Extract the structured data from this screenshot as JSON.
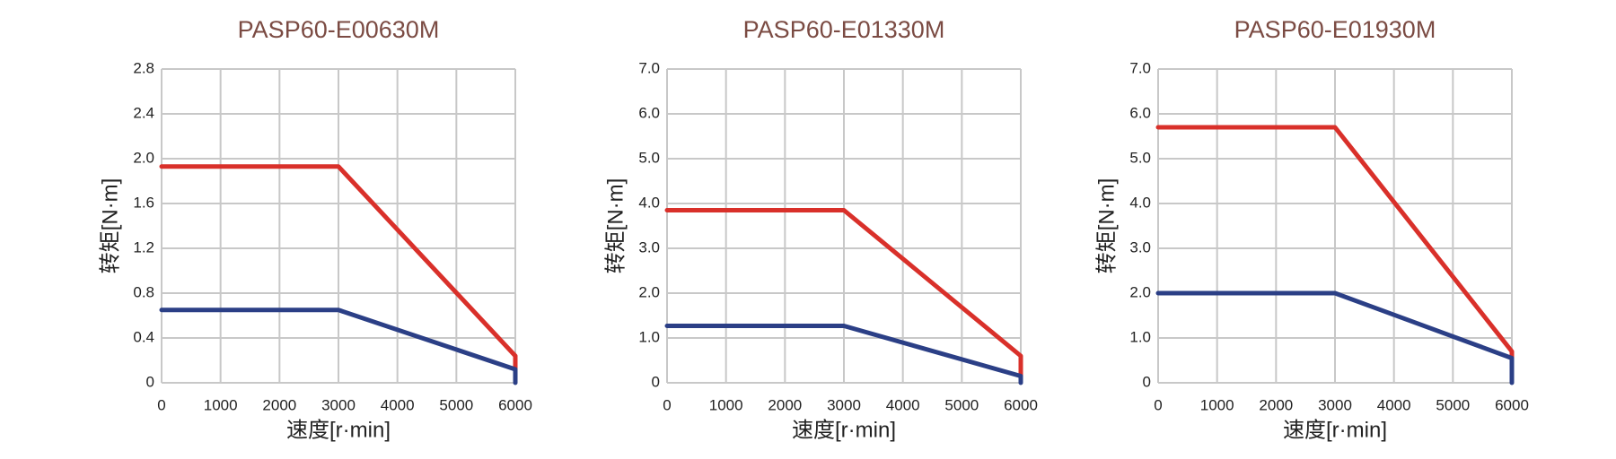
{
  "chart_data": [
    {
      "type": "line",
      "title": "PASP60-E00630M",
      "x_label": "速度[r·min]",
      "y_label": "转矩[N·m]",
      "xlim": [
        0,
        6000
      ],
      "xticks": [
        0,
        1000,
        2000,
        3000,
        4000,
        5000,
        6000
      ],
      "ylim": [
        0,
        2.8
      ],
      "yticks": [
        0,
        0.4,
        0.8,
        1.2,
        1.6,
        {
          "value": 2.0,
          "label": "2.0"
        },
        2.4,
        2.8
      ],
      "grid": true,
      "series": [
        {
          "color": "#d9302a",
          "x": [
            0,
            3000,
            6000,
            6000
          ],
          "values": [
            1.93,
            1.93,
            0.24,
            0.12
          ]
        },
        {
          "color": "#2b3f86",
          "x": [
            0,
            3000,
            6000,
            6000
          ],
          "values": [
            0.65,
            0.65,
            0.12,
            0
          ]
        }
      ]
    },
    {
      "type": "line",
      "title": "PASP60-E01330M",
      "x_label": "速度[r·min]",
      "y_label": "转矩[N·m]",
      "xlim": [
        0,
        6000
      ],
      "xticks": [
        0,
        1000,
        2000,
        3000,
        4000,
        5000,
        6000
      ],
      "ylim": [
        0,
        7
      ],
      "yticks": [
        0,
        {
          "value": 1,
          "label": "1.0"
        },
        {
          "value": 2,
          "label": "2.0"
        },
        {
          "value": 3,
          "label": "3.0"
        },
        {
          "value": 4,
          "label": "4.0"
        },
        {
          "value": 5,
          "label": "5.0"
        },
        {
          "value": 6,
          "label": "6.0"
        },
        {
          "value": 7,
          "label": "7.0"
        }
      ],
      "grid": true,
      "series": [
        {
          "color": "#d9302a",
          "x": [
            0,
            3000,
            6000,
            6000
          ],
          "values": [
            3.85,
            3.85,
            0.6,
            0.15
          ]
        },
        {
          "color": "#2b3f86",
          "x": [
            0,
            3000,
            6000,
            6000
          ],
          "values": [
            1.27,
            1.27,
            0.15,
            0
          ]
        }
      ]
    },
    {
      "type": "line",
      "title": "PASP60-E01930M",
      "x_label": "速度[r·min]",
      "y_label": "转矩[N·m]",
      "xlim": [
        0,
        6000
      ],
      "xticks": [
        0,
        1000,
        2000,
        3000,
        4000,
        5000,
        6000
      ],
      "ylim": [
        0,
        7
      ],
      "yticks": [
        0,
        {
          "value": 1,
          "label": "1.0"
        },
        {
          "value": 2,
          "label": "2.0"
        },
        {
          "value": 3,
          "label": "3.0"
        },
        {
          "value": 4,
          "label": "4.0"
        },
        {
          "value": 5,
          "label": "5.0"
        },
        {
          "value": 6,
          "label": "6.0"
        },
        {
          "value": 7,
          "label": "7.0"
        }
      ],
      "grid": true,
      "series": [
        {
          "color": "#d9302a",
          "x": [
            0,
            3000,
            6000,
            6000
          ],
          "values": [
            5.7,
            5.7,
            0.7,
            0.55
          ]
        },
        {
          "color": "#2b3f86",
          "x": [
            0,
            3000,
            6000,
            6000
          ],
          "values": [
            2.0,
            2.0,
            0.55,
            0
          ]
        }
      ]
    }
  ]
}
